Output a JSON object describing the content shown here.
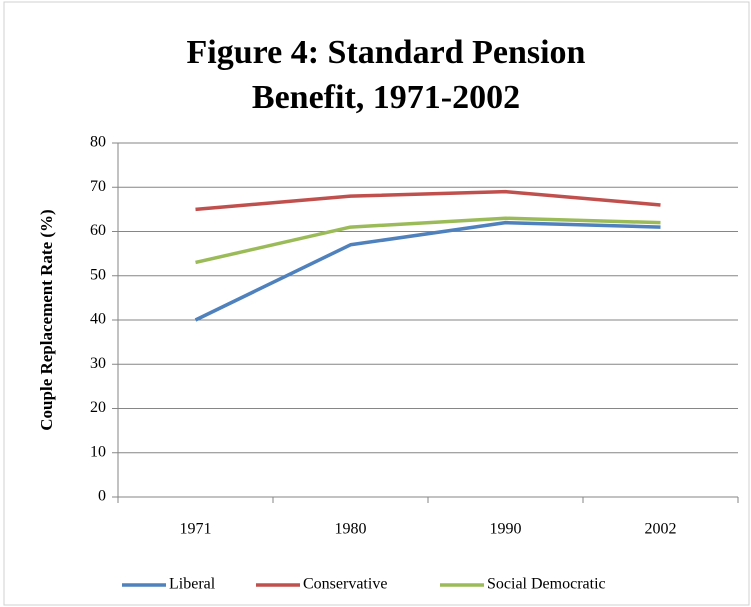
{
  "chart_data": {
    "type": "line",
    "title": [
      "Figure 4: Standard Pension",
      "Benefit, 1971-2002"
    ],
    "y_label": "Couple Replacement Rate (%)",
    "categories": [
      "1971",
      "1980",
      "1990",
      "2002"
    ],
    "series": [
      {
        "name": "Liberal",
        "color": "#4f81bd",
        "values": [
          40,
          57,
          62,
          61
        ]
      },
      {
        "name": "Conservative",
        "color": "#c0504d",
        "values": [
          65,
          68,
          69,
          66
        ]
      },
      {
        "name": "Social Democratic",
        "color": "#9bbb59",
        "values": [
          53,
          61,
          63,
          62
        ]
      }
    ],
    "ylim": [
      0,
      80
    ],
    "yticks": [
      0,
      10,
      20,
      30,
      40,
      50,
      60,
      70,
      80
    ],
    "grid": true,
    "legend": "bottom"
  }
}
